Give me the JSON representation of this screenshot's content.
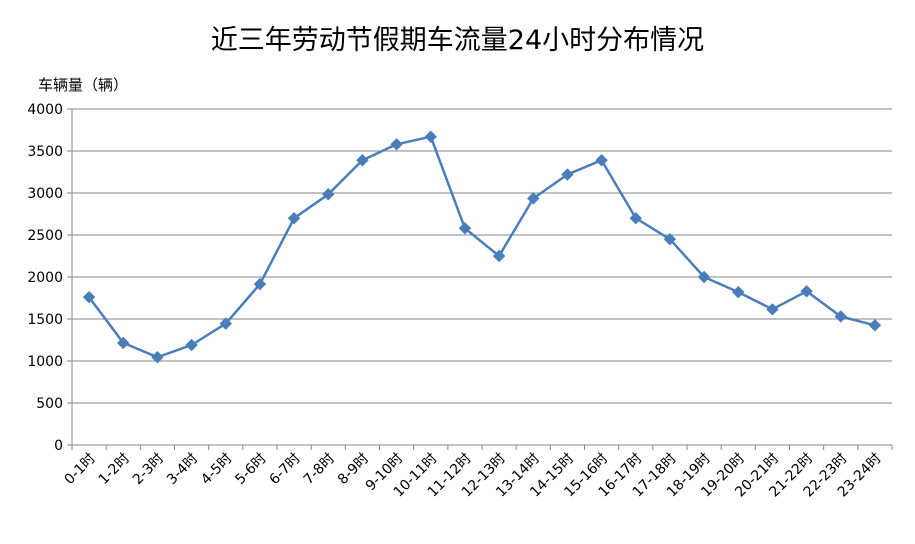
{
  "chart_data": {
    "type": "line",
    "title": "近三年劳动节假期车流量24小时分布情况",
    "ylabel": "车辆量（辆）",
    "xlabel": "",
    "ylim": [
      0,
      4000
    ],
    "yticks": [
      0,
      500,
      1000,
      1500,
      2000,
      2500,
      3000,
      3500,
      4000
    ],
    "grid": true,
    "legend": "none",
    "categories": [
      "0-1时",
      "1-2时",
      "2-3时",
      "3-4时",
      "4-5时",
      "5-6时",
      "6-7时",
      "7-8时",
      "8-9时",
      "9-10时",
      "10-11时",
      "11-12时",
      "12-13时",
      "13-14时",
      "14-15时",
      "15-16时",
      "16-17时",
      "17-18时",
      "18-19时",
      "19-20时",
      "20-21时",
      "21-22时",
      "22-23时",
      "23-24时"
    ],
    "values": [
      1760,
      1215,
      1045,
      1190,
      1445,
      1915,
      2700,
      2985,
      3390,
      3580,
      3670,
      2580,
      2250,
      2935,
      3220,
      3390,
      2700,
      2450,
      2000,
      1820,
      1615,
      1830,
      1530,
      1425
    ],
    "line_color": "#4a7ebb"
  }
}
